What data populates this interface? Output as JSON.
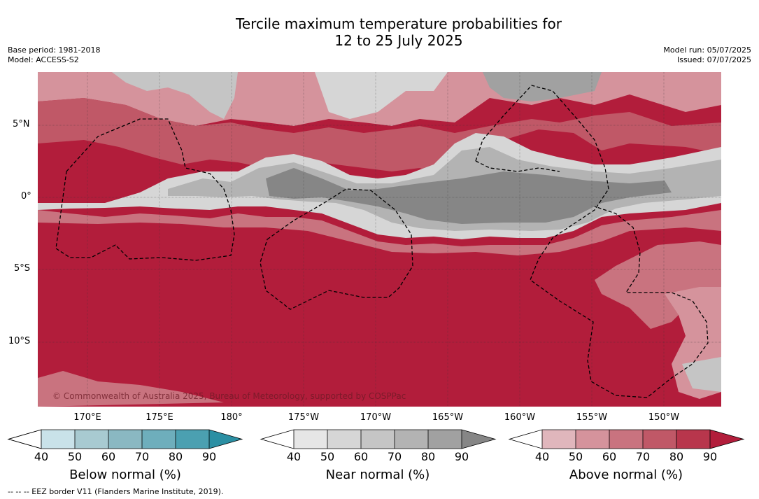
{
  "title_line1": "Tercile maximum temperature probabilities for",
  "title_line2": "12 to 25 July 2025",
  "base_period": "Base period: 1981-2018",
  "model": "Model: ACCESS-S2",
  "model_run": "Model run: 05/07/2025",
  "issued": "Issued: 07/07/2025",
  "lat_labels": [
    "5°N",
    "0°",
    "5°S",
    "10°S"
  ],
  "lon_labels": [
    "170°E",
    "175°E",
    "180°",
    "175°W",
    "170°W",
    "165°W",
    "160°W",
    "155°W",
    "150°W"
  ],
  "copyright": "© Commonwealth of Australia 2025, Bureau of Meteorology, supported by COSPPac",
  "eez_note": "--  --  -- EEZ border V11 (Flanders Marine Institute, 2019).",
  "colorbars": [
    {
      "title": "Below normal (%)",
      "ticks": [
        "40",
        "50",
        "60",
        "70",
        "80",
        "90"
      ],
      "colors": [
        "#c9e2e9",
        "#a8cad1",
        "#8ab8c2",
        "#6eaebc",
        "#4ba0b1",
        "#2b8fa3"
      ]
    },
    {
      "title": "Near normal (%)",
      "ticks": [
        "40",
        "50",
        "60",
        "70",
        "80",
        "90"
      ],
      "colors": [
        "#e6e6e6",
        "#d6d6d6",
        "#c5c5c5",
        "#b3b3b3",
        "#a1a1a1",
        "#868686"
      ]
    },
    {
      "title": "Above normal (%)",
      "ticks": [
        "40",
        "50",
        "60",
        "70",
        "80",
        "90"
      ],
      "colors": [
        "#e0b6bc",
        "#d5939c",
        "#c9737f",
        "#c05867",
        "#b8364c",
        "#b21d3b"
      ]
    }
  ],
  "colors": {
    "above_90": "#b21d3b",
    "above_80": "#b8364c",
    "above_70": "#c05867",
    "above_60": "#c9737f",
    "above_50": "#d5939c",
    "near_60": "#c5c5c5",
    "near_70": "#b3b3b3",
    "near_80": "#a1a1a1",
    "near_90": "#868686",
    "near_50": "#d6d6d6"
  }
}
